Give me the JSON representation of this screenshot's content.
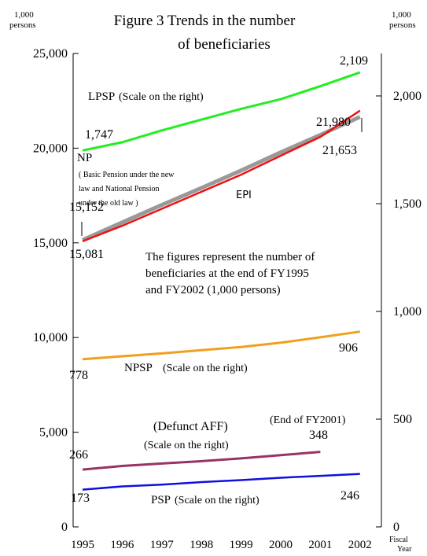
{
  "chart_data": {
    "type": "line",
    "title": [
      "Figure 3 Trends in the number",
      "of beneficiaries"
    ],
    "y_label": [
      "1,000",
      "persons"
    ],
    "y2_label": [
      "1,000",
      "persons"
    ],
    "x_label": [
      "Fiscal",
      "Year"
    ],
    "categories": [
      "1995",
      "1996",
      "1997",
      "1998",
      "1999",
      "2000",
      "2001",
      "2002"
    ],
    "ylim": [
      0,
      25000
    ],
    "yticks": [
      0,
      {
        "value": 5000,
        "label": "5,000"
      },
      {
        "value": 10000,
        "label": "10,000"
      },
      {
        "value": 15000,
        "label": "15,000"
      },
      {
        "value": 20000,
        "label": "20,000"
      },
      {
        "value": 25000,
        "label": "25,000"
      }
    ],
    "y2lim": [
      0,
      2197
    ],
    "y2ticks": [
      0,
      500,
      {
        "value": 1000,
        "label": "1,000"
      },
      {
        "value": 1500,
        "label": "1,500"
      },
      {
        "value": 2000,
        "label": "2,000"
      }
    ],
    "series": [
      {
        "name": "LPSP",
        "note": [
          "(Scale on the right)"
        ],
        "color": "#22ee22",
        "axis": "y2",
        "values": [
          1747,
          1785,
          1840,
          1890,
          1940,
          1985,
          2045,
          2109
        ],
        "value_labels": [
          "1,747",
          null,
          null,
          null,
          null,
          null,
          null,
          "2,109"
        ]
      },
      {
        "name": "NP",
        "note": [
          "( Basic Pension under the new",
          "law and National Pension",
          "under the old law )"
        ],
        "color": "#999999",
        "values": [
          15152,
          16080,
          17000,
          17900,
          18820,
          19780,
          20700,
          21653
        ],
        "value_labels": [
          "15,152",
          null,
          null,
          null,
          null,
          null,
          null,
          "21,653"
        ]
      },
      {
        "name": "EPI",
        "note": [],
        "color": "#ee1111",
        "values": [
          15081,
          15900,
          16800,
          17700,
          18600,
          19600,
          20600,
          21980
        ],
        "value_labels": [
          "15,081",
          null,
          null,
          null,
          null,
          null,
          null,
          "21,980"
        ]
      },
      {
        "name": "NPSP",
        "note": [
          "(Scale on the right)"
        ],
        "color": "#f0a020",
        "axis": "y2",
        "values": [
          778,
          792,
          805,
          820,
          835,
          855,
          880,
          906
        ],
        "value_labels": [
          "778",
          null,
          null,
          null,
          null,
          null,
          null,
          "906"
        ]
      },
      {
        "name": "(Defunct AFF)",
        "note": [
          "(Scale on the right)",
          "(End of FY2001)"
        ],
        "color": "#993366",
        "axis": "y2",
        "values": [
          266,
          283,
          294,
          305,
          318,
          333,
          348,
          null
        ],
        "value_labels": [
          "266",
          null,
          null,
          null,
          null,
          null,
          "348",
          null
        ]
      },
      {
        "name": "PSP",
        "note": [
          "(Scale on the right)"
        ],
        "color": "#1010dd",
        "axis": "y2",
        "values": [
          173,
          188,
          196,
          208,
          217,
          228,
          237,
          246
        ],
        "value_labels": [
          "173",
          null,
          null,
          null,
          null,
          null,
          null,
          "246"
        ]
      }
    ],
    "annotations": [
      "The figures represent the number of",
      "beneficiaries at the end of FY1995",
      "and FY2002 (1,000 persons)"
    ]
  }
}
